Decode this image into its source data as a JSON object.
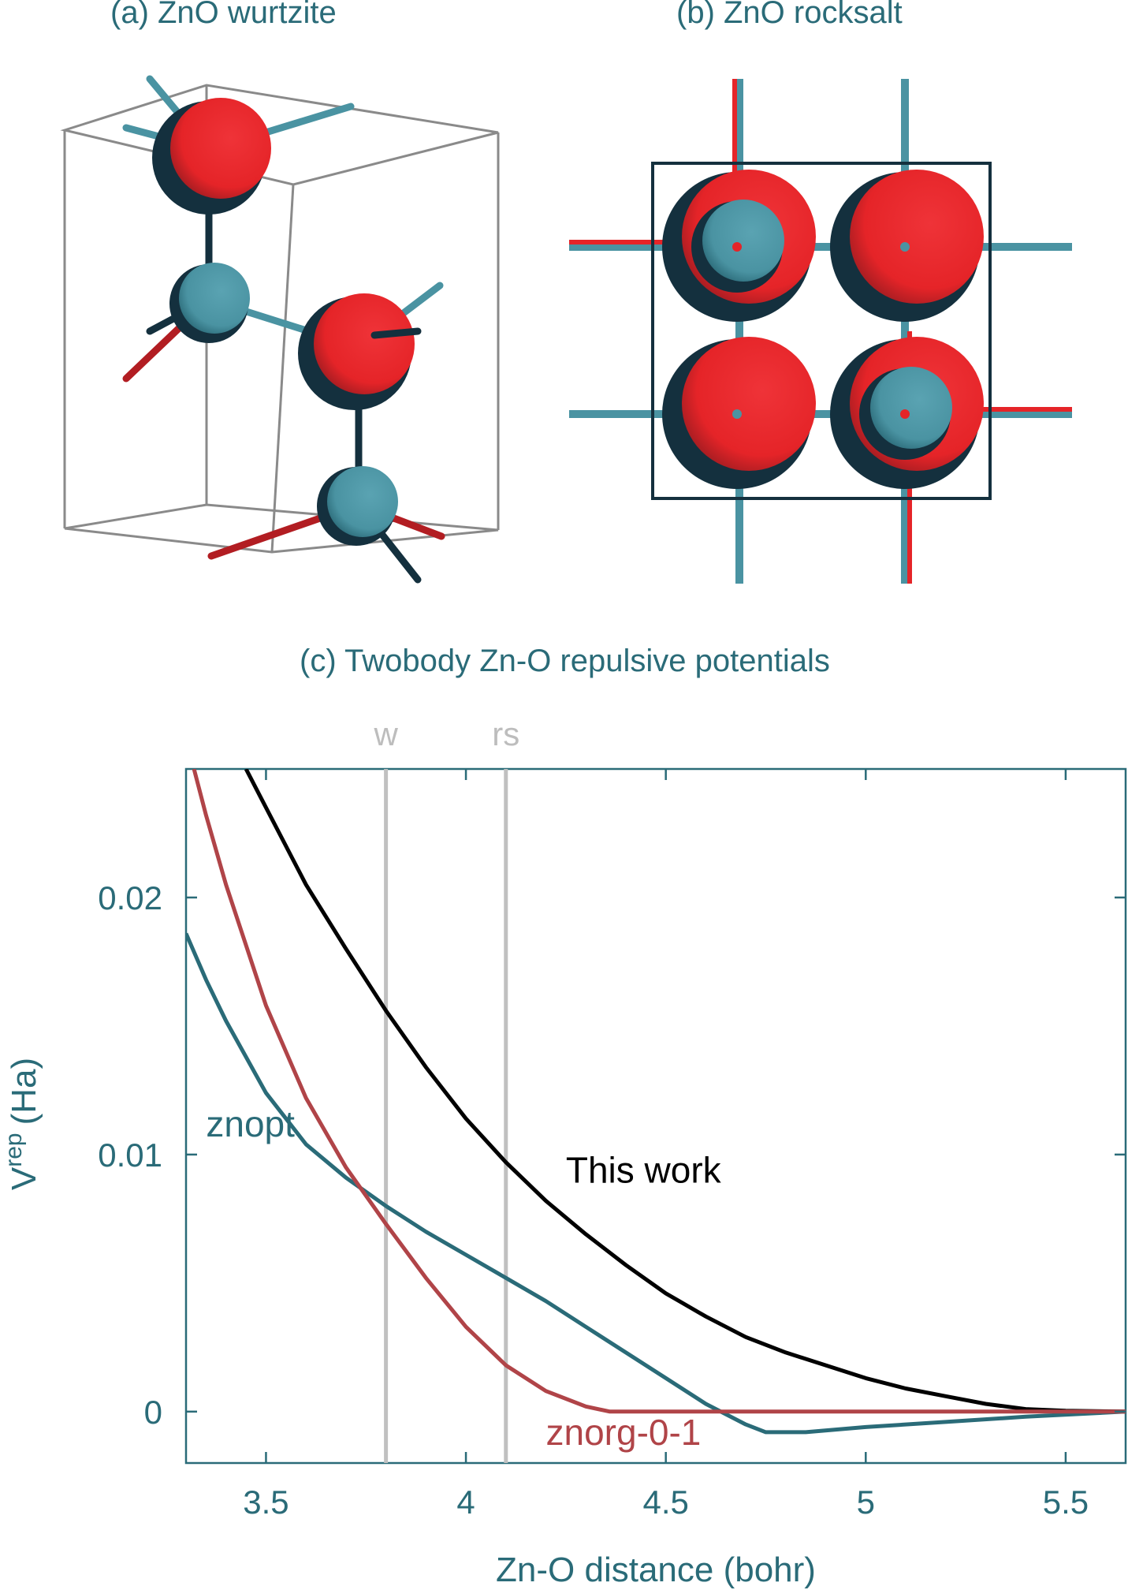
{
  "titles": {
    "a": "(a) ZnO wurtzite",
    "b": "(b) ZnO rocksalt",
    "c": "(c) Twobody Zn-O repulsive potentials"
  },
  "colors": {
    "zn": "#4a93a2",
    "zn_dark": "#14303e",
    "o": "#e52428",
    "o_dark": "#a71d22",
    "axis": "#2a6b78",
    "this_work": "#000000",
    "znopt": "#2a6b78",
    "znorg": "#b04448",
    "ref_line": "#c0c0c0"
  },
  "chart_data": {
    "type": "line",
    "title": "(c) Twobody Zn-O repulsive potentials",
    "xlabel": "Zn-O distance (bohr)",
    "ylabel": "V",
    "ylabel_sup": "rep",
    "ylabel_unit": "(Ha)",
    "xlim": [
      3.3,
      5.65
    ],
    "ylim": [
      -0.002,
      0.025
    ],
    "xticks": [
      3.5,
      4,
      4.5,
      5,
      5.5
    ],
    "xtick_labels": [
      "3.5",
      "4",
      "4.5",
      "5",
      "5.5"
    ],
    "yticks": [
      0,
      0.01,
      0.02
    ],
    "ytick_labels": [
      "0",
      "0.01",
      "0.02"
    ],
    "vlines": [
      {
        "x": 3.8,
        "label": "w"
      },
      {
        "x": 4.1,
        "label": "rs"
      }
    ],
    "series": [
      {
        "name": "This work",
        "color": "#000000",
        "points": [
          [
            3.45,
            0.025
          ],
          [
            3.5,
            0.0235
          ],
          [
            3.6,
            0.0205
          ],
          [
            3.7,
            0.018
          ],
          [
            3.8,
            0.0156
          ],
          [
            3.9,
            0.0134
          ],
          [
            4.0,
            0.0114
          ],
          [
            4.1,
            0.0097
          ],
          [
            4.2,
            0.0082
          ],
          [
            4.3,
            0.0069
          ],
          [
            4.4,
            0.0057
          ],
          [
            4.5,
            0.0046
          ],
          [
            4.6,
            0.0037
          ],
          [
            4.7,
            0.0029
          ],
          [
            4.8,
            0.0023
          ],
          [
            4.9,
            0.0018
          ],
          [
            5.0,
            0.0013
          ],
          [
            5.1,
            0.0009
          ],
          [
            5.2,
            0.0006
          ],
          [
            5.3,
            0.0003
          ],
          [
            5.4,
            0.0001
          ],
          [
            5.5,
            3e-05
          ],
          [
            5.65,
            0.0
          ]
        ]
      },
      {
        "name": "znopt",
        "color": "#2a6b78",
        "points": [
          [
            3.3,
            0.0186
          ],
          [
            3.35,
            0.0168
          ],
          [
            3.4,
            0.0152
          ],
          [
            3.5,
            0.0124
          ],
          [
            3.6,
            0.0104
          ],
          [
            3.7,
            0.0091
          ],
          [
            3.8,
            0.008
          ],
          [
            3.9,
            0.007
          ],
          [
            4.0,
            0.0061
          ],
          [
            4.1,
            0.0052
          ],
          [
            4.2,
            0.0043
          ],
          [
            4.3,
            0.0033
          ],
          [
            4.4,
            0.0023
          ],
          [
            4.5,
            0.0013
          ],
          [
            4.6,
            0.0003
          ],
          [
            4.7,
            -0.0005
          ],
          [
            4.75,
            -0.0008
          ],
          [
            4.85,
            -0.0008
          ],
          [
            5.0,
            -0.0006
          ],
          [
            5.2,
            -0.0004
          ],
          [
            5.4,
            -0.0002
          ],
          [
            5.65,
            0.0
          ]
        ]
      },
      {
        "name": "znorg-0-1",
        "color": "#b04448",
        "points": [
          [
            3.32,
            0.025
          ],
          [
            3.35,
            0.0232
          ],
          [
            3.4,
            0.0205
          ],
          [
            3.5,
            0.0158
          ],
          [
            3.6,
            0.0122
          ],
          [
            3.7,
            0.0095
          ],
          [
            3.8,
            0.0073
          ],
          [
            3.9,
            0.0052
          ],
          [
            4.0,
            0.0033
          ],
          [
            4.1,
            0.0018
          ],
          [
            4.2,
            0.0008
          ],
          [
            4.3,
            0.0002
          ],
          [
            4.36,
            0.0
          ],
          [
            4.5,
            0.0
          ],
          [
            5.0,
            0.0
          ],
          [
            5.65,
            0.0
          ]
        ]
      }
    ],
    "series_labels": [
      {
        "name": "This work",
        "x": 4.25,
        "y": 0.0089,
        "color": "#000000"
      },
      {
        "name": "znopt",
        "x": 3.35,
        "y": 0.0107,
        "color": "#2a6b78"
      },
      {
        "name": "znorg-0-1",
        "x": 4.2,
        "y": -0.0013,
        "color": "#b04448"
      }
    ]
  }
}
